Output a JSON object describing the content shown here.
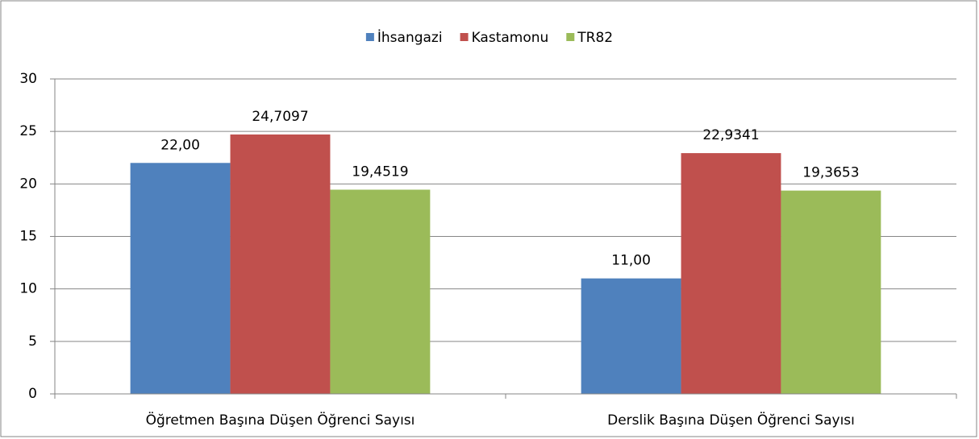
{
  "chart_data": {
    "type": "bar",
    "categories": [
      "Öğretmen Başına Düşen Öğrenci Sayısı",
      "Derslik Başına Düşen Öğrenci Sayısı"
    ],
    "series": [
      {
        "name": "İhsangazi",
        "color": "#4f81bd",
        "values": [
          22,
          11
        ],
        "value_labels": [
          "22,00",
          "11,00"
        ]
      },
      {
        "name": "Kastamonu",
        "color": "#c0504d",
        "values": [
          24.7097,
          22.9341
        ],
        "value_labels": [
          "24,7097",
          "22,9341"
        ]
      },
      {
        "name": "TR82",
        "color": "#9bbb59",
        "values": [
          19.4519,
          19.3653
        ],
        "value_labels": [
          "19,4519",
          "19,3653"
        ]
      }
    ],
    "ylim": [
      0,
      30
    ],
    "yticks": [
      0,
      5,
      10,
      15,
      20,
      25,
      30
    ],
    "grid": true,
    "legend": "top"
  }
}
